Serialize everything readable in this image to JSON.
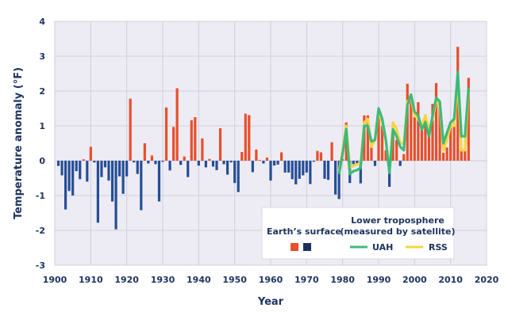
{
  "chart_data": {
    "type": "bar",
    "xlabel": "Year",
    "ylabel": "Temperature anomaly (°F)",
    "xlim": [
      1900,
      2020
    ],
    "ylim": [
      -3,
      4
    ],
    "xticks": [
      1900,
      1910,
      1920,
      1930,
      1940,
      1950,
      1960,
      1970,
      1980,
      1990,
      2000,
      2010,
      2020
    ],
    "yticks": [
      -3,
      -2,
      -1,
      0,
      1,
      2,
      3,
      4
    ],
    "grid": true,
    "legend_position": "bottom-right",
    "colors": {
      "positive": "#e84e2a",
      "negative": "#264e95",
      "uah": "#3dba79",
      "rss": "#f7d640",
      "plot_bg": "#edecf5",
      "grid": "#d0d0d8",
      "text": "#1d3461"
    },
    "surface": {
      "years": [
        1901,
        1902,
        1903,
        1904,
        1905,
        1906,
        1907,
        1908,
        1909,
        1910,
        1911,
        1912,
        1913,
        1914,
        1915,
        1916,
        1917,
        1918,
        1919,
        1920,
        1921,
        1922,
        1923,
        1924,
        1925,
        1926,
        1927,
        1928,
        1929,
        1930,
        1931,
        1932,
        1933,
        1934,
        1935,
        1936,
        1937,
        1938,
        1939,
        1940,
        1941,
        1942,
        1943,
        1944,
        1945,
        1946,
        1947,
        1948,
        1949,
        1950,
        1951,
        1952,
        1953,
        1954,
        1955,
        1956,
        1957,
        1958,
        1959,
        1960,
        1961,
        1962,
        1963,
        1964,
        1965,
        1966,
        1967,
        1968,
        1969,
        1970,
        1971,
        1972,
        1973,
        1974,
        1975,
        1976,
        1977,
        1978,
        1979,
        1980,
        1981,
        1982,
        1983,
        1984,
        1985,
        1986,
        1987,
        1988,
        1989,
        1990,
        1991,
        1992,
        1993,
        1994,
        1995,
        1996,
        1997,
        1998,
        1999,
        2000,
        2001,
        2002,
        2003,
        2004,
        2005,
        2006,
        2007,
        2008,
        2009,
        2010,
        2011,
        2012,
        2013,
        2014,
        2015
      ],
      "values": [
        -0.15,
        -0.42,
        -1.4,
        -0.87,
        -1.0,
        -0.3,
        -0.53,
        0.04,
        -0.6,
        0.4,
        -0.05,
        -1.78,
        -0.47,
        -0.19,
        -0.57,
        -1.17,
        -1.97,
        -0.45,
        -0.95,
        -0.45,
        1.78,
        -0.05,
        -0.38,
        -1.42,
        0.5,
        -0.08,
        0.15,
        -0.1,
        -1.17,
        -0.03,
        1.53,
        -0.28,
        0.97,
        2.08,
        -0.12,
        0.12,
        -0.47,
        1.16,
        1.25,
        -0.14,
        0.64,
        -0.19,
        0.05,
        -0.17,
        -0.27,
        0.93,
        -0.1,
        -0.4,
        -0.05,
        -0.64,
        -0.9,
        0.25,
        1.35,
        1.31,
        -0.33,
        0.32,
        0.02,
        -0.08,
        0.09,
        -0.57,
        -0.14,
        -0.11,
        0.24,
        -0.34,
        -0.34,
        -0.53,
        -0.68,
        -0.52,
        -0.42,
        -0.34,
        -0.67,
        -0.03,
        0.28,
        0.24,
        -0.52,
        -0.55,
        0.53,
        -0.97,
        -1.1,
        0.05,
        1.1,
        -0.64,
        -0.1,
        -0.1,
        -0.65,
        1.3,
        1.3,
        0.6,
        -0.15,
        1.4,
        1.0,
        0.3,
        -0.75,
        0.9,
        0.6,
        -0.15,
        0.19,
        2.21,
        1.9,
        1.25,
        1.68,
        1.02,
        1.33,
        0.72,
        1.63,
        2.23,
        1.67,
        0.23,
        0.38,
        0.98,
        1.2,
        3.27,
        0.3,
        0.3,
        2.38
      ]
    },
    "series": [
      {
        "name": "UAH",
        "years": [
          1979,
          1980,
          1981,
          1982,
          1983,
          1984,
          1985,
          1986,
          1987,
          1988,
          1989,
          1990,
          1991,
          1992,
          1993,
          1994,
          1995,
          1996,
          1997,
          1998,
          1999,
          2000,
          2001,
          2002,
          2003,
          2004,
          2005,
          2006,
          2007,
          2008,
          2009,
          2010,
          2011,
          2012,
          2013,
          2014,
          2015
        ],
        "values": [
          -0.38,
          0.2,
          0.91,
          -0.38,
          -0.3,
          -0.27,
          -0.2,
          1.0,
          1.0,
          0.55,
          0.6,
          1.5,
          1.2,
          0.6,
          -0.35,
          0.9,
          0.7,
          0.4,
          0.3,
          1.6,
          1.9,
          1.4,
          1.3,
          0.9,
          1.1,
          0.7,
          1.3,
          1.8,
          1.7,
          0.5,
          0.8,
          1.1,
          1.2,
          2.55,
          0.7,
          0.7,
          2.1
        ]
      },
      {
        "name": "RSS",
        "years": [
          1979,
          1980,
          1981,
          1982,
          1983,
          1984,
          1985,
          1986,
          1987,
          1988,
          1989,
          1990,
          1991,
          1992,
          1993,
          1994,
          1995,
          1996,
          1997,
          1998,
          1999,
          2000,
          2001,
          2002,
          2003,
          2004,
          2005,
          2006,
          2007,
          2008,
          2009,
          2010,
          2011,
          2012,
          2013,
          2014,
          2015
        ],
        "values": [
          -0.3,
          0.3,
          1.0,
          -0.2,
          -0.15,
          -0.1,
          -0.1,
          1.1,
          1.2,
          0.4,
          0.6,
          1.4,
          1.1,
          0.6,
          -0.3,
          1.1,
          0.9,
          0.5,
          0.5,
          1.7,
          1.8,
          1.3,
          1.2,
          1.0,
          1.3,
          0.9,
          1.2,
          1.7,
          1.6,
          0.3,
          0.6,
          1.0,
          1.0,
          2.3,
          0.3,
          0.3,
          2.0
        ]
      }
    ],
    "legend": {
      "surface_title": "Earth’s surface",
      "satellite_title_1": "Lower troposphere",
      "satellite_title_2": "(measured by satellite)",
      "uah_label": "UAH",
      "rss_label": "RSS"
    }
  }
}
